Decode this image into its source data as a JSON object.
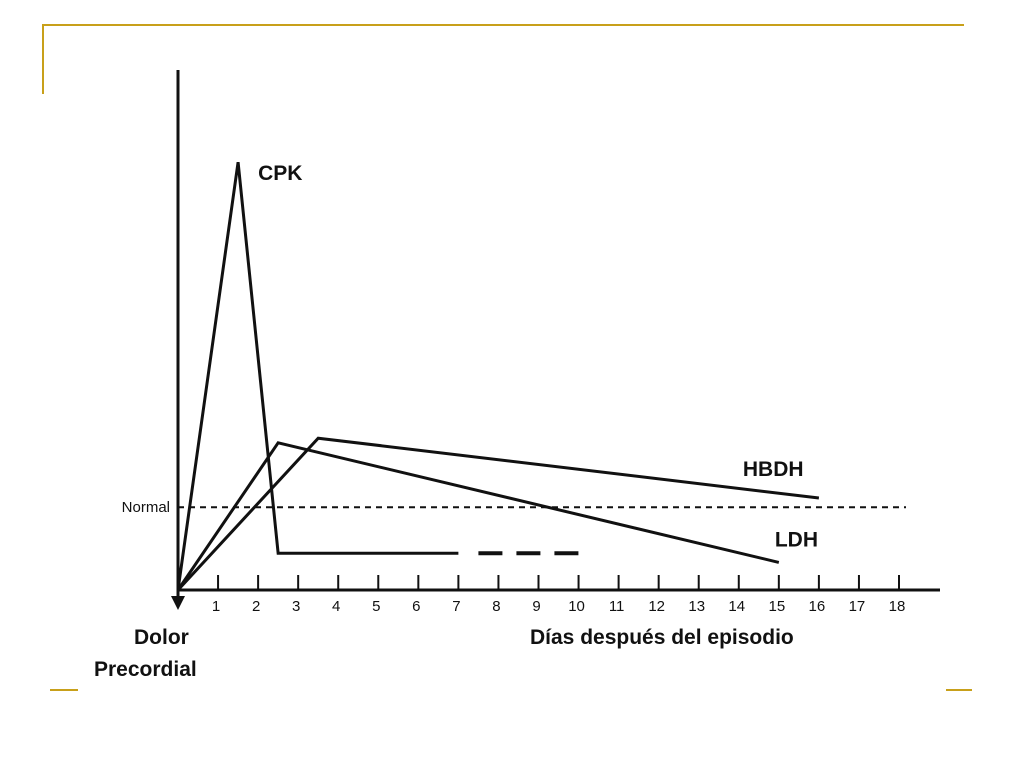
{
  "colors": {
    "accent": "#c8a01a",
    "ink": "#111111"
  },
  "chart_data": {
    "type": "line",
    "title": "",
    "xlabel": "Días después del episodio",
    "ylabel": "",
    "origin_label_line1": "Dolor",
    "origin_label_line2": "Precordial",
    "x_ticks": [
      1,
      2,
      3,
      4,
      5,
      6,
      7,
      8,
      9,
      10,
      11,
      12,
      13,
      14,
      15,
      16,
      17,
      18
    ],
    "xlim": [
      0,
      18
    ],
    "ylim": [
      0,
      100
    ],
    "grid": false,
    "reference_line": {
      "label": "Normal",
      "y": 18,
      "style": "dashed"
    },
    "series": [
      {
        "name": "CPK",
        "points": [
          [
            0,
            0
          ],
          [
            1.5,
            93
          ],
          [
            2.5,
            8
          ],
          [
            7,
            8
          ]
        ],
        "dashed_continuation": [
          [
            7.5,
            8
          ],
          [
            10,
            8
          ]
        ]
      },
      {
        "name": "HBDH",
        "points": [
          [
            0,
            0
          ],
          [
            3.5,
            33
          ],
          [
            16,
            20
          ]
        ]
      },
      {
        "name": "LDH",
        "points": [
          [
            0,
            0
          ],
          [
            2.5,
            32
          ],
          [
            15,
            6
          ]
        ]
      }
    ]
  }
}
